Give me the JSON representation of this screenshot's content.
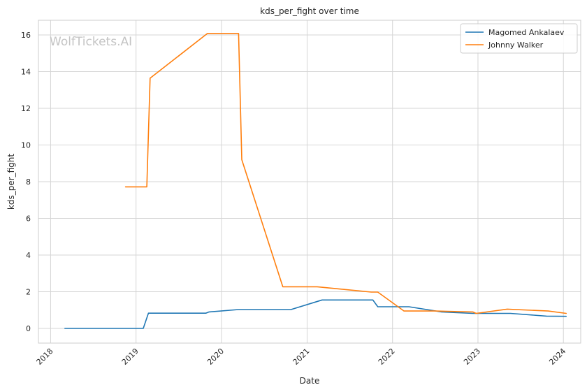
{
  "chart_data": {
    "type": "line",
    "title": "kds_per_fight over time",
    "xlabel": "Date",
    "ylabel": "kds_per_fight",
    "watermark": "WolfTickets.AI",
    "x_axis": "date",
    "xlim": [
      "2017-11-10",
      "2024-03-15"
    ],
    "ylim": [
      -0.8,
      16.8
    ],
    "x_ticks": [
      "2018",
      "2019",
      "2020",
      "2021",
      "2022",
      "2023",
      "2024"
    ],
    "y_ticks": [
      0,
      2,
      4,
      6,
      8,
      10,
      12,
      14,
      16
    ],
    "grid": true,
    "legend_position": "top-right",
    "series": [
      {
        "name": "Magomed Ankalaev",
        "color": "#1f77b4",
        "points": [
          [
            "2018-03-03",
            0
          ],
          [
            "2019-02-01",
            0
          ],
          [
            "2019-02-23",
            0.83
          ],
          [
            "2019-10-26",
            0.83
          ],
          [
            "2019-11-09",
            0.9
          ],
          [
            "2020-03-14",
            1.03
          ],
          [
            "2020-10-24",
            1.03
          ],
          [
            "2021-03-06",
            1.55
          ],
          [
            "2021-10-09",
            1.55
          ],
          [
            "2021-10-30",
            1.18
          ],
          [
            "2022-03-12",
            1.18
          ],
          [
            "2022-07-30",
            0.9
          ],
          [
            "2022-12-10",
            0.82
          ],
          [
            "2023-05-20",
            0.82
          ],
          [
            "2023-10-21",
            0.67
          ],
          [
            "2024-01-13",
            0.66
          ]
        ]
      },
      {
        "name": "Johnny Walker",
        "color": "#ff7f0e",
        "points": [
          [
            "2018-11-17",
            7.72
          ],
          [
            "2019-02-16",
            7.72
          ],
          [
            "2019-03-02",
            13.64
          ],
          [
            "2019-11-02",
            16.08
          ],
          [
            "2020-03-14",
            16.08
          ],
          [
            "2020-03-28",
            9.2
          ],
          [
            "2020-09-19",
            2.27
          ],
          [
            "2021-02-13",
            2.27
          ],
          [
            "2021-10-02",
            1.98
          ],
          [
            "2021-10-30",
            1.98
          ],
          [
            "2022-02-19",
            0.95
          ],
          [
            "2022-07-02",
            0.95
          ],
          [
            "2022-12-10",
            0.9
          ],
          [
            "2022-12-24",
            0.82
          ],
          [
            "2023-05-06",
            1.05
          ],
          [
            "2023-10-28",
            0.95
          ],
          [
            "2024-01-13",
            0.82
          ]
        ]
      }
    ]
  }
}
